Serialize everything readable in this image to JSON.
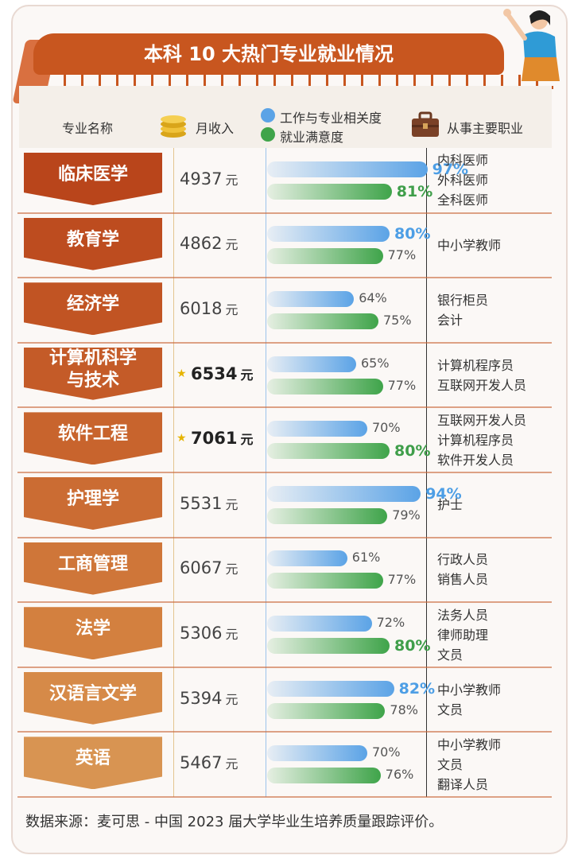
{
  "title": "本科 10 大热门专业就业情况",
  "headers": {
    "major": "专业名称",
    "income": "月收入",
    "relevance": "工作与专业相关度",
    "satisfaction": "就业满意度",
    "jobs": "从事主要职业"
  },
  "source": "数据来源：麦可思 - 中国 2023 届大学毕业生培养质量跟踪评价。",
  "colors": {
    "title": "#c8561f",
    "relevance": "#5ba3e6",
    "satisfaction": "#3fa44a",
    "ribbons": [
      "#b9451b",
      "#bd4c1f",
      "#c15423",
      "#c45b28",
      "#c8642d",
      "#cb6c33",
      "#cf7639",
      "#d3803f",
      "#d68a48",
      "#d89452"
    ]
  },
  "chart_data": {
    "type": "table",
    "columns": [
      "专业名称",
      "月收入",
      "工作与专业相关度",
      "就业满意度",
      "从事主要职业"
    ],
    "rows": [
      {
        "major": "临床医学",
        "income": 4937,
        "unit": "元",
        "relevance": 97,
        "satisfaction": 81,
        "relevance_bold": true,
        "satisfaction_bold": true,
        "star": false,
        "jobs": [
          "内科医师",
          "外科医师",
          "全科医师"
        ]
      },
      {
        "major": "教育学",
        "income": 4862,
        "unit": "元",
        "relevance": 80,
        "satisfaction": 77,
        "relevance_bold": true,
        "satisfaction_bold": false,
        "star": false,
        "jobs": [
          "中小学教师"
        ]
      },
      {
        "major": "经济学",
        "income": 6018,
        "unit": "元",
        "relevance": 64,
        "satisfaction": 75,
        "relevance_bold": false,
        "satisfaction_bold": false,
        "star": false,
        "jobs": [
          "银行柜员",
          "会计"
        ]
      },
      {
        "major": "计算机科学\n与技术",
        "income": 6534,
        "unit": "元",
        "relevance": 65,
        "satisfaction": 77,
        "relevance_bold": false,
        "satisfaction_bold": false,
        "star": true,
        "jobs": [
          "计算机程序员",
          "互联网开发人员"
        ]
      },
      {
        "major": "软件工程",
        "income": 7061,
        "unit": "元",
        "relevance": 70,
        "satisfaction": 80,
        "relevance_bold": false,
        "satisfaction_bold": true,
        "star": true,
        "jobs": [
          "互联网开发人员",
          "计算机程序员",
          "软件开发人员"
        ]
      },
      {
        "major": "护理学",
        "income": 5531,
        "unit": "元",
        "relevance": 94,
        "satisfaction": 79,
        "relevance_bold": true,
        "satisfaction_bold": false,
        "star": false,
        "jobs": [
          "护士"
        ]
      },
      {
        "major": "工商管理",
        "income": 6067,
        "unit": "元",
        "relevance": 61,
        "satisfaction": 77,
        "relevance_bold": false,
        "satisfaction_bold": false,
        "star": false,
        "jobs": [
          "行政人员",
          "销售人员"
        ]
      },
      {
        "major": "法学",
        "income": 5306,
        "unit": "元",
        "relevance": 72,
        "satisfaction": 80,
        "relevance_bold": false,
        "satisfaction_bold": true,
        "star": false,
        "jobs": [
          "法务人员",
          "律师助理",
          "文员"
        ]
      },
      {
        "major": "汉语言文学",
        "income": 5394,
        "unit": "元",
        "relevance": 82,
        "satisfaction": 78,
        "relevance_bold": true,
        "satisfaction_bold": false,
        "star": false,
        "jobs": [
          "中小学教师",
          "文员"
        ]
      },
      {
        "major": "英语",
        "income": 5467,
        "unit": "元",
        "relevance": 70,
        "satisfaction": 76,
        "relevance_bold": false,
        "satisfaction_bold": false,
        "star": false,
        "jobs": [
          "中小学教师",
          "文员",
          "翻译人员"
        ]
      }
    ]
  }
}
